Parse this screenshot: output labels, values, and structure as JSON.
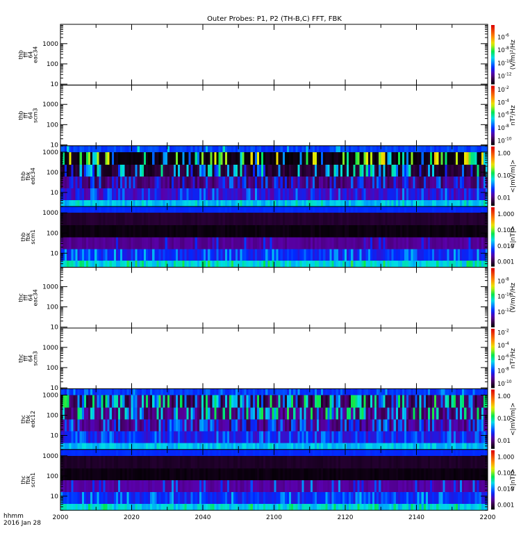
{
  "chart_data": {
    "type": "heatmap",
    "title": "Outer Probes: P1, P2 (TH-B,C) FFT, FBK",
    "x_axis": {
      "title_line1": "hhmm",
      "title_line2": "2016 Jan 28",
      "range": [
        "2000",
        "2200"
      ],
      "tick_labels": [
        "2000",
        "2020",
        "2040",
        "2100",
        "2120",
        "2140",
        "2200"
      ]
    },
    "colormap": [
      "#000000",
      "#3c0050",
      "#5a00aa",
      "#0028ff",
      "#0096ff",
      "#00dce6",
      "#00e650",
      "#e6f000",
      "#ff8c00",
      "#dc0000"
    ],
    "panels": [
      {
        "label": [
          "thb",
          "fff",
          "64",
          "eac34"
        ],
        "kind": "fft",
        "yscale": "log",
        "ylim_hz": [
          9,
          9000
        ],
        "yticks": [
          "1000",
          "100",
          "10"
        ],
        "data_present": false,
        "colorbar": {
          "unit": "(V/m)²/Hz",
          "log_range": [
            -13.3,
            -4.1
          ],
          "ticks": [
            {
              "base": "10",
              "exp": "-6",
              "log": -6
            },
            {
              "base": "10",
              "exp": "-8",
              "log": -8
            },
            {
              "base": "10",
              "exp": "-10",
              "log": -10
            },
            {
              "base": "10",
              "exp": "-12",
              "log": -12
            }
          ]
        }
      },
      {
        "label": [
          "thb",
          "fff",
          "64",
          "scm3"
        ],
        "kind": "fft",
        "yscale": "log",
        "ylim_hz": [
          9,
          9000
        ],
        "yticks": [
          "1000",
          "100",
          "10"
        ],
        "data_present": false,
        "colorbar": {
          "unit": "nT²/Hz",
          "log_range": [
            -10.7,
            -1.4
          ],
          "ticks": [
            {
              "base": "10",
              "exp": "-2",
              "log": -2
            },
            {
              "base": "10",
              "exp": "-4",
              "log": -4
            },
            {
              "base": "10",
              "exp": "-6",
              "log": -6
            },
            {
              "base": "10",
              "exp": "-8",
              "log": -8
            },
            {
              "base": "10",
              "exp": "-10",
              "log": -10
            }
          ]
        }
      },
      {
        "label": [
          "thb",
          "fbk",
          "edc34"
        ],
        "kind": "fbk",
        "yscale": "log",
        "yticks": [
          "1000",
          "100",
          "10"
        ],
        "data_present": true,
        "band_edges_hz": [
          2048,
          1000,
          240,
          62,
          16,
          4.2,
          2
        ],
        "bands": [
          {
            "level": 0.3,
            "var": 0.03,
            "burst_p": 0.06,
            "burst": 0.45
          },
          {
            "level": 0.02,
            "var": 0.02,
            "burst_p": 0.32,
            "burst": 0.62
          },
          {
            "level": 0.06,
            "var": 0.03,
            "burst_p": 0.3,
            "burst": 0.45
          },
          {
            "level": 0.13,
            "var": 0.04,
            "burst_p": 0.28,
            "burst": 0.32
          },
          {
            "level": 0.22,
            "var": 0.05,
            "burst_p": 0.2,
            "burst": 0.36
          },
          {
            "level": 0.42,
            "var": 0.04,
            "burst_p": 0.1,
            "burst": 0.5
          }
        ],
        "colorbar": {
          "unit": "<|mV/m|>",
          "log_range": [
            -2.37,
            0.3
          ],
          "ticks": [
            {
              "base": "1.00",
              "exp": "",
              "log": 0
            },
            {
              "base": "0.10",
              "exp": "",
              "log": -1
            },
            {
              "base": "0.01",
              "exp": "",
              "log": -2
            }
          ]
        }
      },
      {
        "label": [
          "thb",
          "fbk",
          "scm1"
        ],
        "kind": "fbk",
        "yscale": "log",
        "yticks": [
          "1000",
          "100",
          "10"
        ],
        "data_present": true,
        "band_edges_hz": [
          2048,
          1000,
          240,
          62,
          16,
          4.2,
          2
        ],
        "bands": [
          {
            "level": 0.28,
            "var": 0.01,
            "burst_p": 0.0,
            "burst": 0.3
          },
          {
            "level": 0.06,
            "var": 0.01,
            "burst_p": 0.0,
            "burst": 0.1
          },
          {
            "level": 0.02,
            "var": 0.01,
            "burst_p": 0.0,
            "burst": 0.05
          },
          {
            "level": 0.16,
            "var": 0.02,
            "burst_p": 0.1,
            "burst": 0.28
          },
          {
            "level": 0.27,
            "var": 0.04,
            "burst_p": 0.25,
            "burst": 0.4
          },
          {
            "level": 0.45,
            "var": 0.05,
            "burst_p": 0.15,
            "burst": 0.56
          }
        ],
        "colorbar": {
          "unit": "<|nT|>",
          "log_range": [
            -3.3,
            0.42
          ],
          "ticks": [
            {
              "base": "1.000",
              "exp": "",
              "log": 0
            },
            {
              "base": "0.100",
              "exp": "",
              "log": -1
            },
            {
              "base": "0.010",
              "exp": "",
              "log": -2
            },
            {
              "base": "0.001",
              "exp": "",
              "log": -3
            }
          ]
        }
      },
      {
        "label": [
          "thc",
          "fff",
          "64",
          "eac34"
        ],
        "kind": "fft",
        "yscale": "log",
        "ylim_hz": [
          9,
          9000
        ],
        "yticks": [
          "1000",
          "100",
          "10"
        ],
        "data_present": false,
        "colorbar": {
          "unit": "(V/m)²/Hz",
          "log_range": [
            -14,
            -6.3
          ],
          "ticks": [
            {
              "base": "10",
              "exp": "-8",
              "log": -8
            },
            {
              "base": "10",
              "exp": "-10",
              "log": -10
            },
            {
              "base": "10",
              "exp": "-12",
              "log": -12
            }
          ]
        }
      },
      {
        "label": [
          "thc",
          "fff",
          "64",
          "scm3"
        ],
        "kind": "fft",
        "yscale": "log",
        "ylim_hz": [
          9,
          9000
        ],
        "yticks": [
          "1000",
          "100",
          "10"
        ],
        "data_present": false,
        "colorbar": {
          "unit": "nT²/Hz",
          "log_range": [
            -10.7,
            -1.4
          ],
          "ticks": [
            {
              "base": "10",
              "exp": "-2",
              "log": -2
            },
            {
              "base": "10",
              "exp": "-4",
              "log": -4
            },
            {
              "base": "10",
              "exp": "-6",
              "log": -6
            },
            {
              "base": "10",
              "exp": "-8",
              "log": -8
            },
            {
              "base": "10",
              "exp": "-10",
              "log": -10
            }
          ]
        }
      },
      {
        "label": [
          "thc",
          "fbk",
          "edc12"
        ],
        "kind": "fbk",
        "yscale": "log",
        "yticks": [
          "1000",
          "100",
          "10"
        ],
        "data_present": true,
        "band_edges_hz": [
          2048,
          1000,
          240,
          62,
          16,
          4.2,
          2
        ],
        "bands": [
          {
            "level": 0.29,
            "var": 0.03,
            "burst_p": 0.15,
            "burst": 0.38
          },
          {
            "level": 0.1,
            "var": 0.05,
            "burst_p": 0.45,
            "burst": 0.5
          },
          {
            "level": 0.14,
            "var": 0.05,
            "burst_p": 0.4,
            "burst": 0.5
          },
          {
            "level": 0.15,
            "var": 0.05,
            "burst_p": 0.35,
            "burst": 0.36
          },
          {
            "level": 0.25,
            "var": 0.05,
            "burst_p": 0.3,
            "burst": 0.36
          },
          {
            "level": 0.42,
            "var": 0.04,
            "burst_p": 0.1,
            "burst": 0.48
          }
        ],
        "colorbar": {
          "unit": "<|mV/m|>",
          "log_range": [
            -2.37,
            0.3
          ],
          "ticks": [
            {
              "base": "1.00",
              "exp": "",
              "log": 0
            },
            {
              "base": "0.10",
              "exp": "",
              "log": -1
            },
            {
              "base": "0.01",
              "exp": "",
              "log": -2
            }
          ]
        }
      },
      {
        "label": [
          "thc",
          "fbk",
          "scm1"
        ],
        "kind": "fbk",
        "yscale": "log",
        "yticks": [
          "1000",
          "100",
          "10"
        ],
        "data_present": true,
        "band_edges_hz": [
          2048,
          1000,
          240,
          62,
          16,
          4.2,
          2
        ],
        "bands": [
          {
            "level": 0.28,
            "var": 0.01,
            "burst_p": 0.0,
            "burst": 0.3
          },
          {
            "level": 0.05,
            "var": 0.01,
            "burst_p": 0.0,
            "burst": 0.1
          },
          {
            "level": 0.02,
            "var": 0.01,
            "burst_p": 0.0,
            "burst": 0.05
          },
          {
            "level": 0.17,
            "var": 0.02,
            "burst_p": 0.12,
            "burst": 0.35
          },
          {
            "level": 0.27,
            "var": 0.04,
            "burst_p": 0.2,
            "burst": 0.4
          },
          {
            "level": 0.44,
            "var": 0.05,
            "burst_p": 0.15,
            "burst": 0.55
          }
        ],
        "colorbar": {
          "unit": "<|nT|>",
          "log_range": [
            -3.3,
            0.42
          ],
          "ticks": [
            {
              "base": "1.000",
              "exp": "",
              "log": 0
            },
            {
              "base": "0.100",
              "exp": "",
              "log": -1
            },
            {
              "base": "0.010",
              "exp": "",
              "log": -2
            },
            {
              "base": "0.001",
              "exp": "",
              "log": -3
            }
          ]
        }
      }
    ]
  }
}
